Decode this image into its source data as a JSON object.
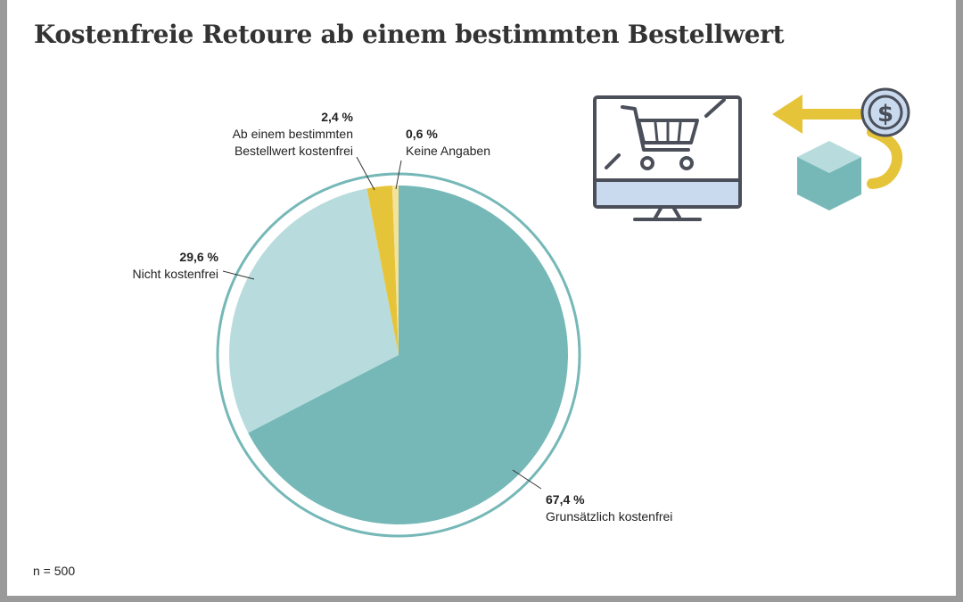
{
  "chart_data": {
    "type": "pie",
    "title": "Kostenfreie Retoure ab einem bestimmten Bestellwert",
    "categories": [
      "Grunsätzlich kostenfrei",
      "Nicht kostenfrei",
      "Ab einem bestimmten Bestellwert kostenfrei",
      "Keine Angaben"
    ],
    "values": [
      67.4,
      29.6,
      2.4,
      0.6
    ],
    "value_labels": [
      "67,4 %",
      "29,6 %",
      "2,4 %",
      "0,6 %"
    ],
    "colors": [
      "#75b8b7",
      "#b8dcdd",
      "#e6c43a",
      "#f3e39a"
    ],
    "note": "n = 500"
  }
}
